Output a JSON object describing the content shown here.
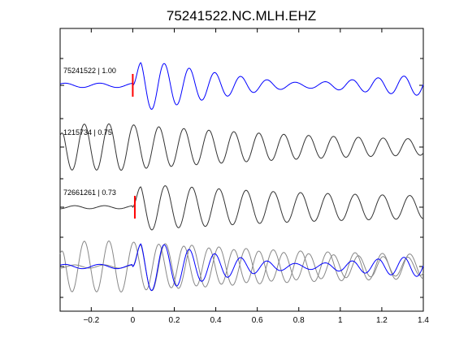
{
  "chart_data": {
    "type": "line",
    "title": "75241522.NC.MLH.EHZ",
    "xlabel": "",
    "ylabel": "",
    "xlim": [
      -0.35,
      1.4
    ],
    "xticks": [
      -0.2,
      0,
      0.2,
      0.4,
      0.6,
      0.8,
      1.0,
      1.2,
      1.4
    ],
    "xtick_labels": [
      "−0.2",
      "0",
      "0.2",
      "0.4",
      "0.6",
      "0.8",
      "1",
      "1.2",
      "1.4"
    ],
    "grid": false,
    "colors": {
      "template": "#0000ff",
      "trace": "#333333",
      "overlay": "#888888",
      "pick": "#ff0000"
    },
    "series": [
      {
        "name": "75241522 | 1.00",
        "color": "#0000ff",
        "onset": 0.0,
        "pre_amp": 0.08,
        "pre_freq": 6.0,
        "amp": 1.0,
        "freq": 8.0,
        "phase": 0.0,
        "decay": 0.9,
        "tail_amp": 0.38,
        "tail_freq": 8.3,
        "pick_time": 0.0
      },
      {
        "name": "1215734 | 0.75",
        "color": "#333333",
        "onset": -0.37,
        "pre_amp": 0.0,
        "pre_freq": 6.0,
        "amp": 0.95,
        "freq": 8.2,
        "phase": 0.6,
        "decay": 0.7,
        "tail_amp": 0.45,
        "tail_freq": 8.3
      },
      {
        "name": "72661261 | 0.73",
        "color": "#333333",
        "onset": 0.0,
        "pre_amp": 0.06,
        "pre_freq": 7.0,
        "amp": 1.0,
        "freq": 7.6,
        "phase": 0.2,
        "decay": 1.1,
        "tail_amp": 0.28,
        "tail_freq": 7.5,
        "pick_time": 0.01
      }
    ],
    "overlay": {
      "label": "",
      "of_series": [
        0,
        1,
        2
      ]
    }
  }
}
